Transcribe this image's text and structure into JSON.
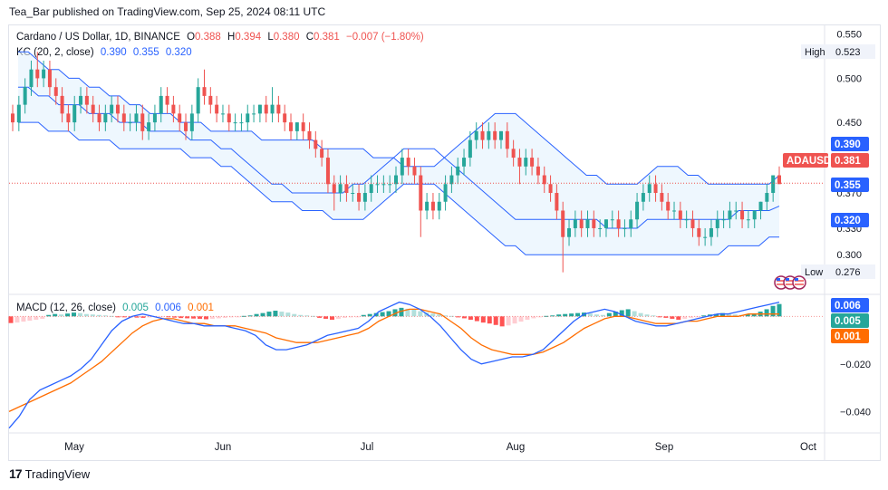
{
  "header": {
    "publisher": "Tea_Bar published on TradingView.com, Sep 25, 2024 08:11 UTC"
  },
  "legend": {
    "symbol": "Cardano / US Dollar, 1D, BINANCE",
    "o_label": "O",
    "o": "0.388",
    "h_label": "H",
    "h": "0.394",
    "l_label": "L",
    "l": "0.380",
    "c_label": "C",
    "c": "0.381",
    "chg": "−0.007 (−1.80%)",
    "kc_label": "KC (20, 2, close)",
    "kc_upper": "0.390",
    "kc_mid": "0.355",
    "kc_lower": "0.320",
    "macd_label": "MACD (12, 26, close)",
    "macd_hist": "0.005",
    "macd_line": "0.006",
    "macd_signal": "0.001"
  },
  "badges": {
    "high_label": "High",
    "high_value": "0.523",
    "low_label": "Low",
    "low_value": "0.276",
    "ticker": "ADAUSD",
    "price": "0.381",
    "kc_upper": "0.390",
    "kc_mid": "0.355",
    "kc_lower": "0.320",
    "macd_line": "0.006",
    "macd_hist": "0.005",
    "macd_signal": "0.001"
  },
  "footer": {
    "brand": "TradingView"
  },
  "colors": {
    "up": "#26a69a",
    "down": "#ef5350",
    "band": "#2962ff",
    "band_fill": "#e3f2fd",
    "macd": "#2962ff",
    "signal": "#ff6d00",
    "hist_up_strong": "#26a69a",
    "hist_up_weak": "#b2dfdb",
    "hist_down_strong": "#ff5252",
    "hist_down_weak": "#ffcdd2"
  },
  "chart_data": {
    "type": "candlestick",
    "x_ticks": [
      "May",
      "Jun",
      "Jul",
      "Aug",
      "Sep",
      "Oct"
    ],
    "price_axis_ticks": [
      "0.550",
      "0.500",
      "0.450",
      "0.410",
      "0.370",
      "0.330",
      "0.300"
    ],
    "price_range": [
      0.255,
      0.56
    ],
    "macd_axis_ticks": [
      "-0.020",
      "-0.040"
    ],
    "macd_range": [
      -0.049,
      0.0085
    ],
    "candles_ohlc": [
      [
        0.46,
        0.47,
        0.44,
        0.45
      ],
      [
        0.45,
        0.48,
        0.44,
        0.47
      ],
      [
        0.47,
        0.5,
        0.46,
        0.49
      ],
      [
        0.49,
        0.52,
        0.48,
        0.51
      ],
      [
        0.51,
        0.53,
        0.49,
        0.5
      ],
      [
        0.5,
        0.52,
        0.49,
        0.51
      ],
      [
        0.51,
        0.52,
        0.48,
        0.49
      ],
      [
        0.49,
        0.5,
        0.47,
        0.48
      ],
      [
        0.48,
        0.49,
        0.45,
        0.46
      ],
      [
        0.46,
        0.47,
        0.44,
        0.45
      ],
      [
        0.45,
        0.48,
        0.44,
        0.47
      ],
      [
        0.47,
        0.49,
        0.46,
        0.48
      ],
      [
        0.48,
        0.49,
        0.46,
        0.47
      ],
      [
        0.47,
        0.48,
        0.45,
        0.46
      ],
      [
        0.46,
        0.47,
        0.44,
        0.45
      ],
      [
        0.45,
        0.47,
        0.44,
        0.46
      ],
      [
        0.46,
        0.48,
        0.45,
        0.47
      ],
      [
        0.47,
        0.48,
        0.45,
        0.46
      ],
      [
        0.46,
        0.47,
        0.44,
        0.45
      ],
      [
        0.45,
        0.46,
        0.44,
        0.45
      ],
      [
        0.45,
        0.47,
        0.44,
        0.46
      ],
      [
        0.46,
        0.47,
        0.43,
        0.44
      ],
      [
        0.44,
        0.46,
        0.43,
        0.45
      ],
      [
        0.45,
        0.47,
        0.44,
        0.46
      ],
      [
        0.46,
        0.49,
        0.45,
        0.48
      ],
      [
        0.48,
        0.49,
        0.46,
        0.47
      ],
      [
        0.47,
        0.48,
        0.45,
        0.46
      ],
      [
        0.46,
        0.47,
        0.44,
        0.45
      ],
      [
        0.45,
        0.46,
        0.43,
        0.44
      ],
      [
        0.44,
        0.47,
        0.43,
        0.46
      ],
      [
        0.46,
        0.5,
        0.45,
        0.49
      ],
      [
        0.49,
        0.51,
        0.47,
        0.48
      ],
      [
        0.48,
        0.49,
        0.46,
        0.47
      ],
      [
        0.47,
        0.48,
        0.45,
        0.46
      ],
      [
        0.46,
        0.47,
        0.45,
        0.46
      ],
      [
        0.46,
        0.47,
        0.44,
        0.45
      ],
      [
        0.45,
        0.46,
        0.44,
        0.45
      ],
      [
        0.45,
        0.46,
        0.44,
        0.45
      ],
      [
        0.45,
        0.47,
        0.44,
        0.46
      ],
      [
        0.46,
        0.47,
        0.45,
        0.46
      ],
      [
        0.46,
        0.47,
        0.45,
        0.47
      ],
      [
        0.47,
        0.48,
        0.45,
        0.46
      ],
      [
        0.46,
        0.49,
        0.45,
        0.47
      ],
      [
        0.47,
        0.48,
        0.45,
        0.46
      ],
      [
        0.46,
        0.47,
        0.44,
        0.45
      ],
      [
        0.45,
        0.46,
        0.43,
        0.44
      ],
      [
        0.44,
        0.45,
        0.43,
        0.45
      ],
      [
        0.45,
        0.46,
        0.43,
        0.44
      ],
      [
        0.44,
        0.45,
        0.42,
        0.43
      ],
      [
        0.43,
        0.44,
        0.41,
        0.42
      ],
      [
        0.42,
        0.43,
        0.4,
        0.41
      ],
      [
        0.41,
        0.42,
        0.37,
        0.38
      ],
      [
        0.38,
        0.39,
        0.35,
        0.37
      ],
      [
        0.37,
        0.39,
        0.36,
        0.38
      ],
      [
        0.38,
        0.39,
        0.36,
        0.37
      ],
      [
        0.37,
        0.38,
        0.36,
        0.37
      ],
      [
        0.37,
        0.38,
        0.35,
        0.36
      ],
      [
        0.36,
        0.38,
        0.35,
        0.37
      ],
      [
        0.37,
        0.39,
        0.36,
        0.38
      ],
      [
        0.38,
        0.39,
        0.37,
        0.38
      ],
      [
        0.38,
        0.39,
        0.37,
        0.38
      ],
      [
        0.38,
        0.39,
        0.37,
        0.38
      ],
      [
        0.38,
        0.4,
        0.37,
        0.39
      ],
      [
        0.39,
        0.42,
        0.38,
        0.41
      ],
      [
        0.41,
        0.42,
        0.39,
        0.4
      ],
      [
        0.4,
        0.41,
        0.38,
        0.39
      ],
      [
        0.39,
        0.4,
        0.32,
        0.35
      ],
      [
        0.35,
        0.37,
        0.34,
        0.36
      ],
      [
        0.36,
        0.37,
        0.34,
        0.35
      ],
      [
        0.35,
        0.37,
        0.34,
        0.36
      ],
      [
        0.36,
        0.39,
        0.35,
        0.38
      ],
      [
        0.38,
        0.4,
        0.37,
        0.39
      ],
      [
        0.39,
        0.41,
        0.38,
        0.4
      ],
      [
        0.4,
        0.42,
        0.39,
        0.41
      ],
      [
        0.41,
        0.44,
        0.4,
        0.43
      ],
      [
        0.43,
        0.45,
        0.42,
        0.44
      ],
      [
        0.44,
        0.45,
        0.42,
        0.43
      ],
      [
        0.43,
        0.45,
        0.42,
        0.44
      ],
      [
        0.44,
        0.45,
        0.42,
        0.43
      ],
      [
        0.43,
        0.44,
        0.42,
        0.44
      ],
      [
        0.44,
        0.45,
        0.41,
        0.42
      ],
      [
        0.42,
        0.43,
        0.4,
        0.41
      ],
      [
        0.41,
        0.42,
        0.38,
        0.4
      ],
      [
        0.4,
        0.42,
        0.39,
        0.41
      ],
      [
        0.41,
        0.42,
        0.39,
        0.4
      ],
      [
        0.4,
        0.41,
        0.38,
        0.39
      ],
      [
        0.39,
        0.4,
        0.37,
        0.38
      ],
      [
        0.38,
        0.39,
        0.36,
        0.37
      ],
      [
        0.37,
        0.38,
        0.34,
        0.35
      ],
      [
        0.35,
        0.36,
        0.28,
        0.32
      ],
      [
        0.32,
        0.34,
        0.31,
        0.33
      ],
      [
        0.33,
        0.35,
        0.32,
        0.34
      ],
      [
        0.34,
        0.35,
        0.32,
        0.33
      ],
      [
        0.33,
        0.35,
        0.32,
        0.34
      ],
      [
        0.34,
        0.35,
        0.32,
        0.33
      ],
      [
        0.33,
        0.34,
        0.32,
        0.33
      ],
      [
        0.33,
        0.34,
        0.32,
        0.34
      ],
      [
        0.34,
        0.35,
        0.33,
        0.34
      ],
      [
        0.34,
        0.35,
        0.32,
        0.33
      ],
      [
        0.33,
        0.34,
        0.32,
        0.33
      ],
      [
        0.33,
        0.35,
        0.32,
        0.34
      ],
      [
        0.34,
        0.37,
        0.33,
        0.36
      ],
      [
        0.36,
        0.38,
        0.35,
        0.37
      ],
      [
        0.37,
        0.39,
        0.36,
        0.38
      ],
      [
        0.38,
        0.39,
        0.36,
        0.37
      ],
      [
        0.37,
        0.38,
        0.35,
        0.36
      ],
      [
        0.36,
        0.37,
        0.34,
        0.35
      ],
      [
        0.35,
        0.36,
        0.34,
        0.35
      ],
      [
        0.35,
        0.36,
        0.33,
        0.34
      ],
      [
        0.34,
        0.35,
        0.33,
        0.34
      ],
      [
        0.34,
        0.35,
        0.32,
        0.33
      ],
      [
        0.33,
        0.34,
        0.31,
        0.32
      ],
      [
        0.32,
        0.33,
        0.31,
        0.32
      ],
      [
        0.32,
        0.34,
        0.31,
        0.33
      ],
      [
        0.33,
        0.35,
        0.32,
        0.34
      ],
      [
        0.34,
        0.35,
        0.33,
        0.34
      ],
      [
        0.34,
        0.36,
        0.33,
        0.35
      ],
      [
        0.35,
        0.36,
        0.34,
        0.35
      ],
      [
        0.35,
        0.36,
        0.33,
        0.34
      ],
      [
        0.34,
        0.35,
        0.33,
        0.34
      ],
      [
        0.34,
        0.35,
        0.33,
        0.35
      ],
      [
        0.35,
        0.36,
        0.34,
        0.36
      ],
      [
        0.36,
        0.38,
        0.35,
        0.37
      ],
      [
        0.37,
        0.39,
        0.36,
        0.39
      ],
      [
        0.39,
        0.4,
        0.38,
        0.38
      ]
    ],
    "keltner_channel": {
      "upper": [
        0.53,
        0.53,
        0.52,
        0.51,
        0.51,
        0.5,
        0.5,
        0.49,
        0.49,
        0.48,
        0.48,
        0.47,
        0.47,
        0.46,
        0.46,
        0.46,
        0.45,
        0.45,
        0.45,
        0.44,
        0.44,
        0.44,
        0.44,
        0.44,
        0.43,
        0.43,
        0.43,
        0.43,
        0.43,
        0.43,
        0.42,
        0.42,
        0.42,
        0.42,
        0.42,
        0.41,
        0.41,
        0.41,
        0.4,
        0.4,
        0.4,
        0.4,
        0.41,
        0.42,
        0.43,
        0.44,
        0.45,
        0.46,
        0.46,
        0.46,
        0.45,
        0.44,
        0.43,
        0.42,
        0.41,
        0.4,
        0.39,
        0.39,
        0.38,
        0.38,
        0.38,
        0.38,
        0.39,
        0.4,
        0.4,
        0.4,
        0.39,
        0.39,
        0.38,
        0.38,
        0.38,
        0.38,
        0.38,
        0.38,
        0.38,
        0.39
      ],
      "middle": [
        0.49,
        0.49,
        0.48,
        0.48,
        0.47,
        0.47,
        0.47,
        0.46,
        0.46,
        0.46,
        0.45,
        0.45,
        0.45,
        0.44,
        0.44,
        0.44,
        0.44,
        0.43,
        0.43,
        0.43,
        0.42,
        0.42,
        0.41,
        0.4,
        0.39,
        0.38,
        0.38,
        0.37,
        0.37,
        0.37,
        0.37,
        0.37,
        0.37,
        0.38,
        0.38,
        0.39,
        0.4,
        0.41,
        0.42,
        0.42,
        0.42,
        0.42,
        0.41,
        0.4,
        0.39,
        0.38,
        0.37,
        0.36,
        0.35,
        0.34,
        0.34,
        0.34,
        0.34,
        0.34,
        0.34,
        0.34,
        0.34,
        0.34,
        0.33,
        0.33,
        0.33,
        0.33,
        0.34,
        0.34,
        0.34,
        0.34,
        0.34,
        0.34,
        0.34,
        0.34,
        0.34,
        0.35,
        0.35,
        0.35,
        0.35,
        0.355
      ],
      "lower": [
        0.45,
        0.45,
        0.45,
        0.44,
        0.44,
        0.44,
        0.43,
        0.43,
        0.43,
        0.43,
        0.42,
        0.42,
        0.42,
        0.42,
        0.42,
        0.42,
        0.42,
        0.41,
        0.41,
        0.41,
        0.4,
        0.4,
        0.39,
        0.38,
        0.37,
        0.36,
        0.36,
        0.36,
        0.35,
        0.35,
        0.35,
        0.34,
        0.34,
        0.34,
        0.34,
        0.35,
        0.36,
        0.37,
        0.38,
        0.38,
        0.38,
        0.38,
        0.37,
        0.36,
        0.35,
        0.34,
        0.33,
        0.32,
        0.31,
        0.31,
        0.3,
        0.3,
        0.3,
        0.3,
        0.3,
        0.3,
        0.3,
        0.3,
        0.3,
        0.3,
        0.3,
        0.3,
        0.3,
        0.3,
        0.3,
        0.3,
        0.3,
        0.3,
        0.3,
        0.3,
        0.31,
        0.31,
        0.31,
        0.31,
        0.32,
        0.32
      ]
    },
    "macd": {
      "macd_line": [
        -0.047,
        -0.042,
        -0.035,
        -0.031,
        -0.029,
        -0.027,
        -0.025,
        -0.022,
        -0.018,
        -0.012,
        -0.006,
        -0.002,
        0.0,
        0.001,
        0.0,
        -0.001,
        -0.002,
        -0.003,
        -0.003,
        -0.004,
        -0.004,
        -0.004,
        -0.005,
        -0.006,
        -0.008,
        -0.012,
        -0.014,
        -0.014,
        -0.013,
        -0.012,
        -0.01,
        -0.008,
        -0.007,
        -0.006,
        -0.005,
        -0.002,
        0.002,
        0.004,
        0.006,
        0.005,
        0.003,
        0.0,
        -0.004,
        -0.009,
        -0.014,
        -0.018,
        -0.02,
        -0.019,
        -0.018,
        -0.017,
        -0.017,
        -0.016,
        -0.014,
        -0.01,
        -0.006,
        -0.002,
        0.001,
        0.002,
        0.003,
        0.002,
        0.0,
        -0.002,
        -0.003,
        -0.004,
        -0.004,
        -0.003,
        -0.002,
        -0.001,
        0.0,
        0.001,
        0.001,
        0.002,
        0.003,
        0.004,
        0.005,
        0.006
      ],
      "signal_line": [
        -0.04,
        -0.038,
        -0.036,
        -0.034,
        -0.032,
        -0.03,
        -0.028,
        -0.025,
        -0.022,
        -0.019,
        -0.015,
        -0.011,
        -0.007,
        -0.004,
        -0.002,
        -0.001,
        -0.001,
        -0.002,
        -0.003,
        -0.003,
        -0.004,
        -0.004,
        -0.004,
        -0.005,
        -0.006,
        -0.007,
        -0.009,
        -0.01,
        -0.011,
        -0.011,
        -0.011,
        -0.01,
        -0.009,
        -0.008,
        -0.007,
        -0.005,
        -0.002,
        0.0,
        0.002,
        0.003,
        0.003,
        0.002,
        0.001,
        -0.002,
        -0.005,
        -0.009,
        -0.012,
        -0.014,
        -0.015,
        -0.016,
        -0.016,
        -0.016,
        -0.015,
        -0.013,
        -0.011,
        -0.008,
        -0.005,
        -0.003,
        -0.001,
        0.0,
        0.0,
        -0.001,
        -0.002,
        -0.003,
        -0.003,
        -0.003,
        -0.002,
        -0.002,
        -0.001,
        0.0,
        0.0,
        0.0,
        0.001,
        0.001,
        0.001,
        0.001
      ],
      "histogram": [
        -0.0028,
        -0.0026,
        -0.0022,
        -0.0018,
        -0.0014,
        -0.001,
        0.0006,
        0.001,
        0.0008,
        0.0012,
        0.0016,
        0.0014,
        0.001,
        0.0008,
        0.0006,
        0.0004,
        0.0002,
        -0.0002,
        -0.0003,
        -0.0004,
        -0.0005,
        -0.0006,
        -0.0004,
        -0.0003,
        -0.0002,
        -0.0003,
        -0.0005,
        -0.0007,
        -0.0008,
        -0.0009,
        -0.001,
        -0.0012,
        -0.001,
        -0.0008,
        -0.0006,
        -0.0004,
        -0.0002,
        0.0002,
        0.0004,
        0.001,
        0.0014,
        0.002,
        0.0024,
        0.002,
        0.0016,
        0.001,
        0.0006,
        0.0004,
        0.0002,
        -0.0006,
        -0.001,
        -0.0014,
        -0.001,
        -0.0006,
        -0.0004,
        -0.0002,
        0.0006,
        0.001,
        0.0014,
        0.0018,
        0.0022,
        0.003,
        0.0036,
        0.0032,
        0.0028,
        0.0022,
        0.0016,
        0.0012,
        0.0008,
        0.0004,
        0.0002,
        -0.0004,
        -0.0008,
        -0.0014,
        -0.002,
        -0.0026,
        -0.003,
        -0.0036,
        -0.0042,
        -0.0038,
        -0.003,
        -0.0022,
        -0.0014,
        -0.0008,
        -0.0004,
        0.0002,
        0.0004,
        0.0008,
        0.001,
        0.0012,
        0.0014,
        0.0016,
        0.0012,
        0.0008,
        0.0006,
        0.0014,
        0.002,
        0.0026,
        0.003,
        0.0022,
        0.0014,
        0.0008,
        0.0004,
        -0.0002,
        -0.0006,
        -0.001,
        -0.0014,
        -0.001,
        -0.0006,
        -0.0002,
        0.0004,
        0.0008,
        0.001,
        0.0014,
        0.0012,
        0.0008,
        0.0006,
        0.0008,
        0.0012,
        0.002,
        0.003,
        0.0044,
        0.0052
      ]
    }
  }
}
